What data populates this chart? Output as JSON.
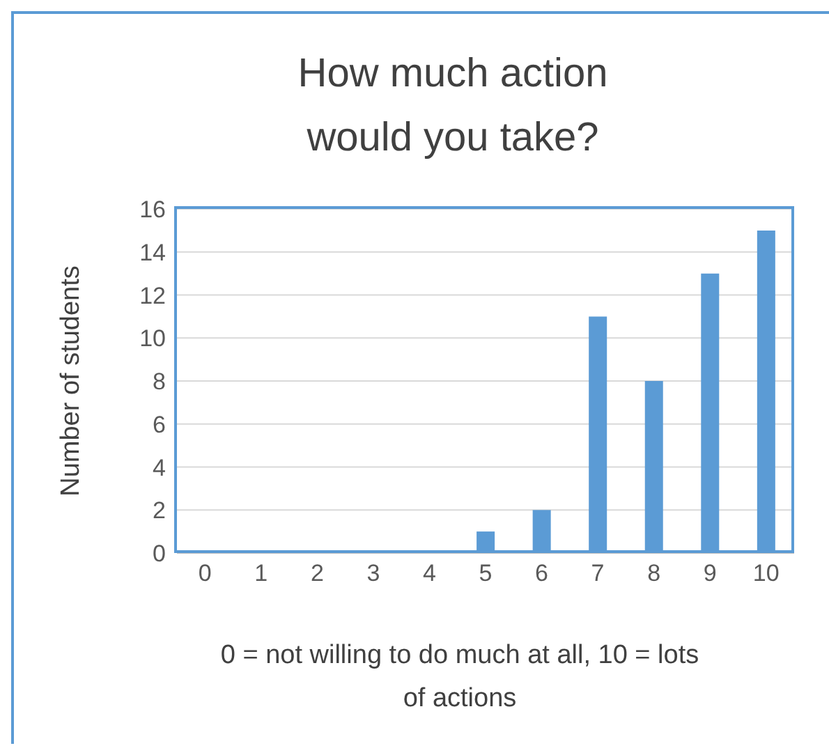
{
  "chart_data": {
    "type": "bar",
    "title": "How much action would you take?",
    "xlabel": "0 = not willing to do much at all, 10 = lots of actions",
    "ylabel": "Number of students",
    "categories": [
      "0",
      "1",
      "2",
      "3",
      "4",
      "5",
      "6",
      "7",
      "8",
      "9",
      "10"
    ],
    "values": [
      0,
      0,
      0,
      0,
      0,
      1,
      2,
      11,
      8,
      13,
      15
    ],
    "color": "#5b9bd5",
    "ylim": [
      0,
      16
    ],
    "yticks": [
      0,
      2,
      4,
      6,
      8,
      10,
      12,
      14,
      16
    ],
    "grid": "y",
    "legend": false
  }
}
